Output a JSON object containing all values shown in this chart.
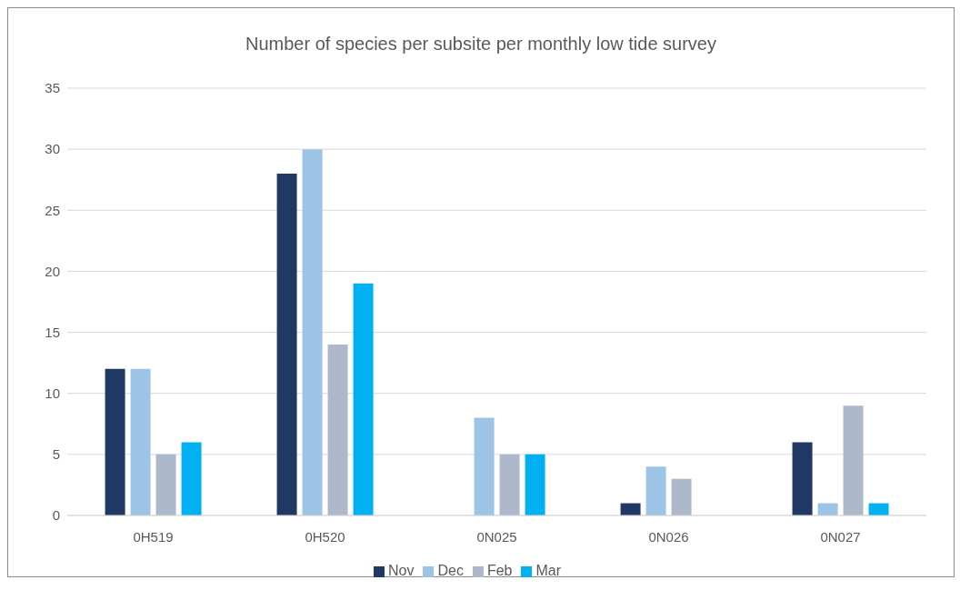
{
  "chart_data": {
    "type": "bar",
    "title": "Number of species per subsite per monthly low tide survey",
    "categories": [
      "0H519",
      "0H520",
      "0N025",
      "0N026",
      "0N027"
    ],
    "series": [
      {
        "name": "Nov",
        "color": "#1f3864",
        "values": [
          12,
          28,
          0,
          1,
          6
        ]
      },
      {
        "name": "Dec",
        "color": "#9dc3e6",
        "values": [
          12,
          30,
          8,
          4,
          1
        ]
      },
      {
        "name": "Feb",
        "color": "#adb9ca",
        "values": [
          5,
          14,
          5,
          3,
          9
        ]
      },
      {
        "name": "Mar",
        "color": "#00b0f0",
        "values": [
          6,
          19,
          5,
          0,
          1
        ]
      }
    ],
    "ylim": [
      0,
      35
    ],
    "yticks": [
      0,
      5,
      10,
      15,
      20,
      25,
      30,
      35
    ],
    "grid": "y",
    "legend": "bottom"
  }
}
